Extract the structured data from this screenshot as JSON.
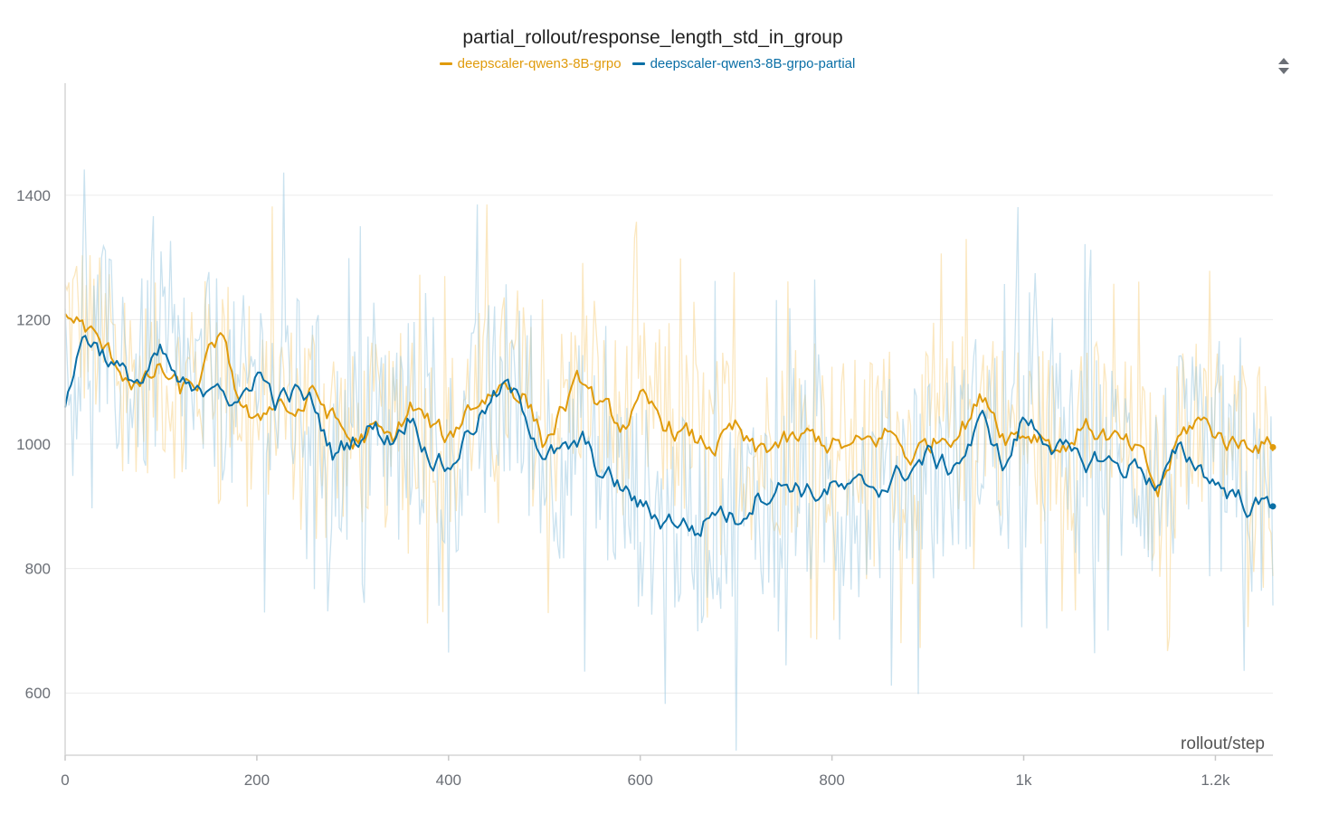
{
  "chart_data": {
    "type": "line",
    "title": "partial_rollout/response_length_std_in_group",
    "xlabel": "rollout/step",
    "ylabel": "",
    "xlim": [
      0,
      1260
    ],
    "ylim": [
      500,
      1580
    ],
    "x_ticks": [
      {
        "value": 0,
        "label": "0"
      },
      {
        "value": 200,
        "label": "200"
      },
      {
        "value": 400,
        "label": "400"
      },
      {
        "value": 600,
        "label": "600"
      },
      {
        "value": 800,
        "label": "800"
      },
      {
        "value": 1000,
        "label": "1k"
      },
      {
        "value": 1200,
        "label": "1.2k"
      }
    ],
    "y_ticks": [
      {
        "value": 600,
        "label": "600"
      },
      {
        "value": 800,
        "label": "800"
      },
      {
        "value": 1000,
        "label": "1000"
      },
      {
        "value": 1200,
        "label": "1200"
      },
      {
        "value": 1400,
        "label": "1400"
      }
    ],
    "grid": true,
    "legend_position": "top-center",
    "series": [
      {
        "name": "deepscaler-qwen3-8B-grpo",
        "color": "#e09b0c",
        "raw_color": "#f7d38a",
        "raw_amplitude": 150,
        "x": [
          0,
          20,
          40,
          60,
          80,
          100,
          120,
          140,
          160,
          180,
          200,
          220,
          240,
          260,
          280,
          300,
          320,
          340,
          360,
          380,
          400,
          420,
          440,
          460,
          480,
          500,
          520,
          540,
          560,
          580,
          600,
          620,
          640,
          660,
          680,
          700,
          720,
          740,
          760,
          780,
          800,
          820,
          840,
          860,
          880,
          900,
          920,
          940,
          960,
          980,
          1000,
          1020,
          1040,
          1060,
          1080,
          1100,
          1120,
          1140,
          1160,
          1180,
          1200,
          1220,
          1240,
          1260
        ],
        "values": [
          1210,
          1190,
          1150,
          1120,
          1090,
          1120,
          1080,
          1100,
          1170,
          1080,
          1020,
          1080,
          1050,
          1080,
          1040,
          1000,
          1020,
          1000,
          1060,
          1030,
          1000,
          1060,
          1080,
          1100,
          1080,
          1000,
          1060,
          1100,
          1050,
          1030,
          1060,
          1040,
          1020,
          1000,
          1000,
          1020,
          980,
          1000,
          1000,
          1010,
          1000,
          990,
          1000,
          1020,
          980,
          1000,
          1020,
          1040,
          1080,
          1020,
          1020,
          1020,
          990,
          1030,
          1020,
          1000,
          980,
          920,
          1000,
          1040,
          1020,
          1000,
          1010,
          995
        ]
      },
      {
        "name": "deepscaler-qwen3-8B-grpo-partial",
        "color": "#0a6fa6",
        "raw_color": "#9fcbe2",
        "raw_amplitude": 170,
        "x": [
          0,
          20,
          40,
          60,
          80,
          100,
          120,
          140,
          160,
          180,
          200,
          220,
          240,
          260,
          280,
          300,
          320,
          340,
          360,
          380,
          400,
          420,
          440,
          460,
          480,
          500,
          520,
          540,
          560,
          580,
          600,
          620,
          640,
          660,
          680,
          700,
          720,
          740,
          760,
          780,
          800,
          820,
          840,
          860,
          880,
          900,
          920,
          940,
          960,
          980,
          1000,
          1020,
          1040,
          1060,
          1080,
          1100,
          1120,
          1140,
          1160,
          1180,
          1200,
          1220,
          1240,
          1260
        ],
        "values": [
          1070,
          1180,
          1150,
          1110,
          1100,
          1140,
          1090,
          1070,
          1120,
          1050,
          1120,
          1070,
          1080,
          1060,
          980,
          1010,
          1030,
          1010,
          1050,
          990,
          960,
          1020,
          1060,
          1090,
          1050,
          990,
          980,
          1000,
          950,
          930,
          900,
          880,
          880,
          860,
          900,
          880,
          920,
          930,
          940,
          920,
          930,
          920,
          930,
          940,
          960,
          980,
          960,
          990,
          1040,
          960,
          1040,
          1020,
          990,
          960,
          980,
          960,
          970,
          930,
          980,
          970,
          940,
          920,
          900,
          900
        ]
      }
    ]
  },
  "legend": [
    {
      "label": "deepscaler-qwen3-8B-grpo",
      "color": "#e09b0c"
    },
    {
      "label": "deepscaler-qwen3-8B-grpo-partial",
      "color": "#0a6fa6"
    }
  ],
  "toolbar": {
    "menu_icon": "sort-arrows-icon"
  }
}
